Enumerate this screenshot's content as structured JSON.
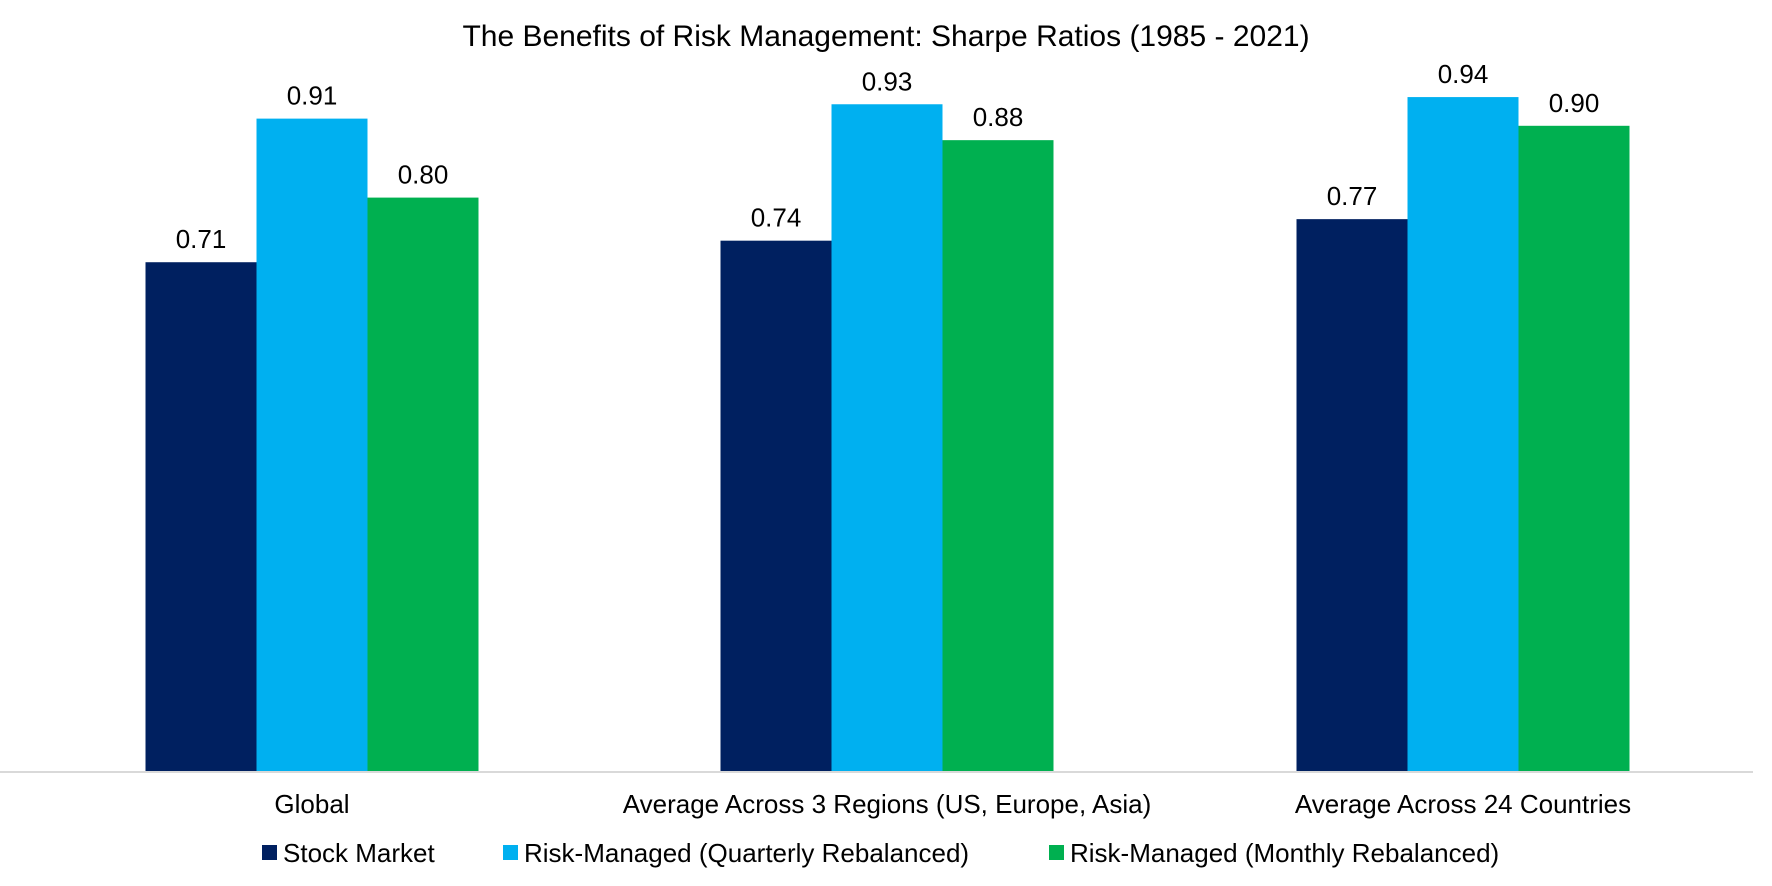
{
  "chart_data": {
    "type": "bar",
    "title": "The Benefits of Risk Management: Sharpe Ratios (1985 - 2021)",
    "xlabel": "",
    "ylabel": "",
    "ylim": [
      0,
      1.0
    ],
    "grid": false,
    "legend_position": "bottom",
    "categories": [
      "Global",
      "Average Across 3 Regions (US, Europe, Asia)",
      "Average Across 24 Countries"
    ],
    "series": [
      {
        "name": "Stock Market",
        "color": "#002060",
        "values": [
          0.71,
          0.74,
          0.77
        ],
        "labels": [
          "0.71",
          "0.74",
          "0.77"
        ]
      },
      {
        "name": "Risk-Managed (Quarterly Rebalanced)",
        "color": "#00B0F0",
        "values": [
          0.91,
          0.93,
          0.94
        ],
        "labels": [
          "0.91",
          "0.93",
          "0.94"
        ]
      },
      {
        "name": "Risk-Managed (Monthly Rebalanced)",
        "color": "#00B050",
        "values": [
          0.8,
          0.88,
          0.9
        ],
        "labels": [
          "0.80",
          "0.88",
          "0.90"
        ]
      }
    ]
  }
}
